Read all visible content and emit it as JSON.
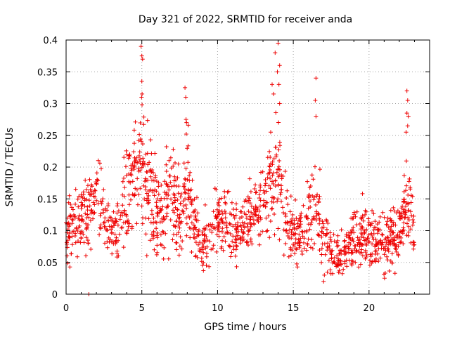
{
  "chart_data": {
    "type": "scatter",
    "title": "Day 321 of 2022, SRMTID for receiver anda",
    "xlabel": "GPS time / hours",
    "ylabel": "SRMTID / TECUs",
    "xlim": [
      0,
      24
    ],
    "ylim": [
      0,
      0.4
    ],
    "xticks": [
      0,
      5,
      10,
      15,
      20
    ],
    "xtick_labels": [
      "0",
      "5",
      "10",
      "15",
      "20"
    ],
    "yticks": [
      0,
      0.05,
      0.1,
      0.15,
      0.2,
      0.25,
      0.3,
      0.35,
      0.4
    ],
    "ytick_labels": [
      "0",
      "0.05",
      "0.1",
      "0.15",
      "0.2",
      "0.25",
      "0.3",
      "0.35",
      "0.4"
    ],
    "grid": true,
    "marker": "+",
    "color": "#ee0000",
    "series": [
      {
        "name": "SRMTID",
        "envelope_hours": [
          0.0,
          0.5,
          1.0,
          1.5,
          2.0,
          2.5,
          3.0,
          3.5,
          4.0,
          4.5,
          5.0,
          5.5,
          6.0,
          6.5,
          7.0,
          7.5,
          8.0,
          8.5,
          9.0,
          9.5,
          10.0,
          10.5,
          11.0,
          11.5,
          12.0,
          12.5,
          13.0,
          13.5,
          14.0,
          14.5,
          15.0,
          15.5,
          16.0,
          16.5,
          17.0,
          17.5,
          18.0,
          18.5,
          19.0,
          19.5,
          20.0,
          20.5,
          21.0,
          21.5,
          22.0,
          22.5,
          23.0
        ],
        "envelope_center": [
          0.1,
          0.1,
          0.12,
          0.13,
          0.16,
          0.13,
          0.1,
          0.09,
          0.15,
          0.18,
          0.2,
          0.16,
          0.14,
          0.12,
          0.17,
          0.12,
          0.17,
          0.11,
          0.08,
          0.08,
          0.12,
          0.11,
          0.1,
          0.1,
          0.12,
          0.13,
          0.14,
          0.17,
          0.2,
          0.12,
          0.09,
          0.09,
          0.12,
          0.14,
          0.1,
          0.07,
          0.06,
          0.07,
          0.09,
          0.1,
          0.09,
          0.09,
          0.08,
          0.09,
          0.1,
          0.14,
          0.1
        ],
        "envelope_spread": [
          0.03,
          0.03,
          0.03,
          0.04,
          0.04,
          0.03,
          0.03,
          0.03,
          0.05,
          0.05,
          0.06,
          0.05,
          0.04,
          0.04,
          0.05,
          0.04,
          0.05,
          0.04,
          0.03,
          0.03,
          0.03,
          0.03,
          0.03,
          0.03,
          0.03,
          0.03,
          0.04,
          0.05,
          0.06,
          0.04,
          0.03,
          0.03,
          0.04,
          0.04,
          0.03,
          0.02,
          0.02,
          0.02,
          0.03,
          0.03,
          0.03,
          0.03,
          0.03,
          0.03,
          0.03,
          0.04,
          0.03
        ],
        "highlights": [
          [
            4.95,
            0.39
          ],
          [
            5.0,
            0.375
          ],
          [
            5.05,
            0.37
          ],
          [
            5.0,
            0.335
          ],
          [
            5.02,
            0.315
          ],
          [
            4.98,
            0.31
          ],
          [
            7.85,
            0.325
          ],
          [
            7.9,
            0.31
          ],
          [
            7.92,
            0.275
          ],
          [
            7.95,
            0.27
          ],
          [
            14.0,
            0.395
          ],
          [
            13.8,
            0.38
          ],
          [
            14.1,
            0.36
          ],
          [
            13.95,
            0.35
          ],
          [
            14.05,
            0.33
          ],
          [
            13.6,
            0.33
          ],
          [
            13.7,
            0.315
          ],
          [
            14.1,
            0.3
          ],
          [
            16.5,
            0.34
          ],
          [
            16.45,
            0.305
          ],
          [
            16.5,
            0.28
          ],
          [
            22.5,
            0.32
          ],
          [
            22.55,
            0.305
          ],
          [
            22.5,
            0.285
          ],
          [
            22.6,
            0.28
          ],
          [
            22.55,
            0.265
          ],
          [
            22.45,
            0.255
          ],
          [
            1.5,
            0.0
          ],
          [
            17.0,
            0.02
          ],
          [
            17.05,
            0.03
          ]
        ]
      }
    ]
  }
}
